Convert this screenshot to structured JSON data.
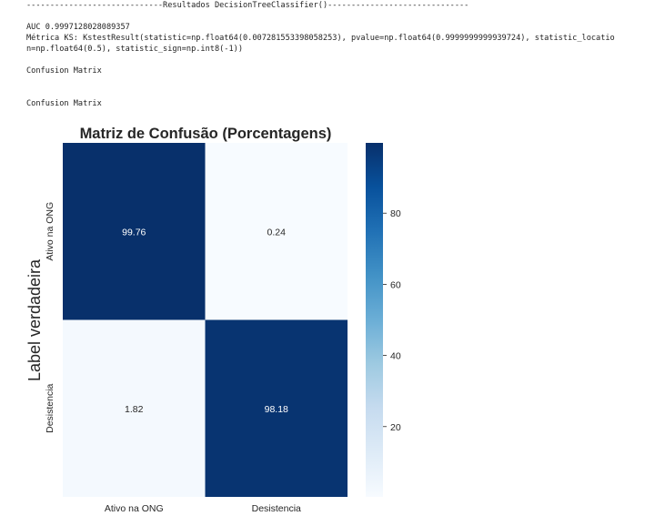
{
  "console": {
    "header_line": "-----------------------------Resultados DecisionTreeClassifier()------------------------------",
    "auc_line": "AUC 0.9997128028089357",
    "ks_line_1": "Métrica KS: KstestResult(statistic=np.float64(0.007281553398058253), pvalue=np.float64(0.9999999999939724), statistic_locatio",
    "ks_line_2": "n=np.float64(0.5), statistic_sign=np.int8(-1))",
    "confusion_label_1": "Confusion Matrix",
    "confusion_label_2": "Confusion Matrix"
  },
  "chart_data": {
    "type": "heatmap",
    "title": "Matriz de Confusão (Porcentagens)",
    "ylabel": "Label verdadeira",
    "xlabel": "",
    "row_labels": [
      "Ativo na ONG",
      "Desistencia"
    ],
    "col_labels": [
      "Ativo na ONG",
      "Desistencia"
    ],
    "values": [
      [
        99.76,
        0.24
      ],
      [
        1.82,
        98.18
      ]
    ],
    "cell_labels": [
      [
        "99.76",
        "0.24"
      ],
      [
        "1.82",
        "98.18"
      ]
    ],
    "colormap": "Blues",
    "colorbar": {
      "min": 0.24,
      "max": 99.76,
      "ticks": [
        20,
        40,
        60,
        80
      ],
      "tick_labels": [
        "20",
        "40",
        "60",
        "80"
      ]
    },
    "colors": {
      "low": "#f7fbff",
      "high": "#08306b"
    }
  }
}
